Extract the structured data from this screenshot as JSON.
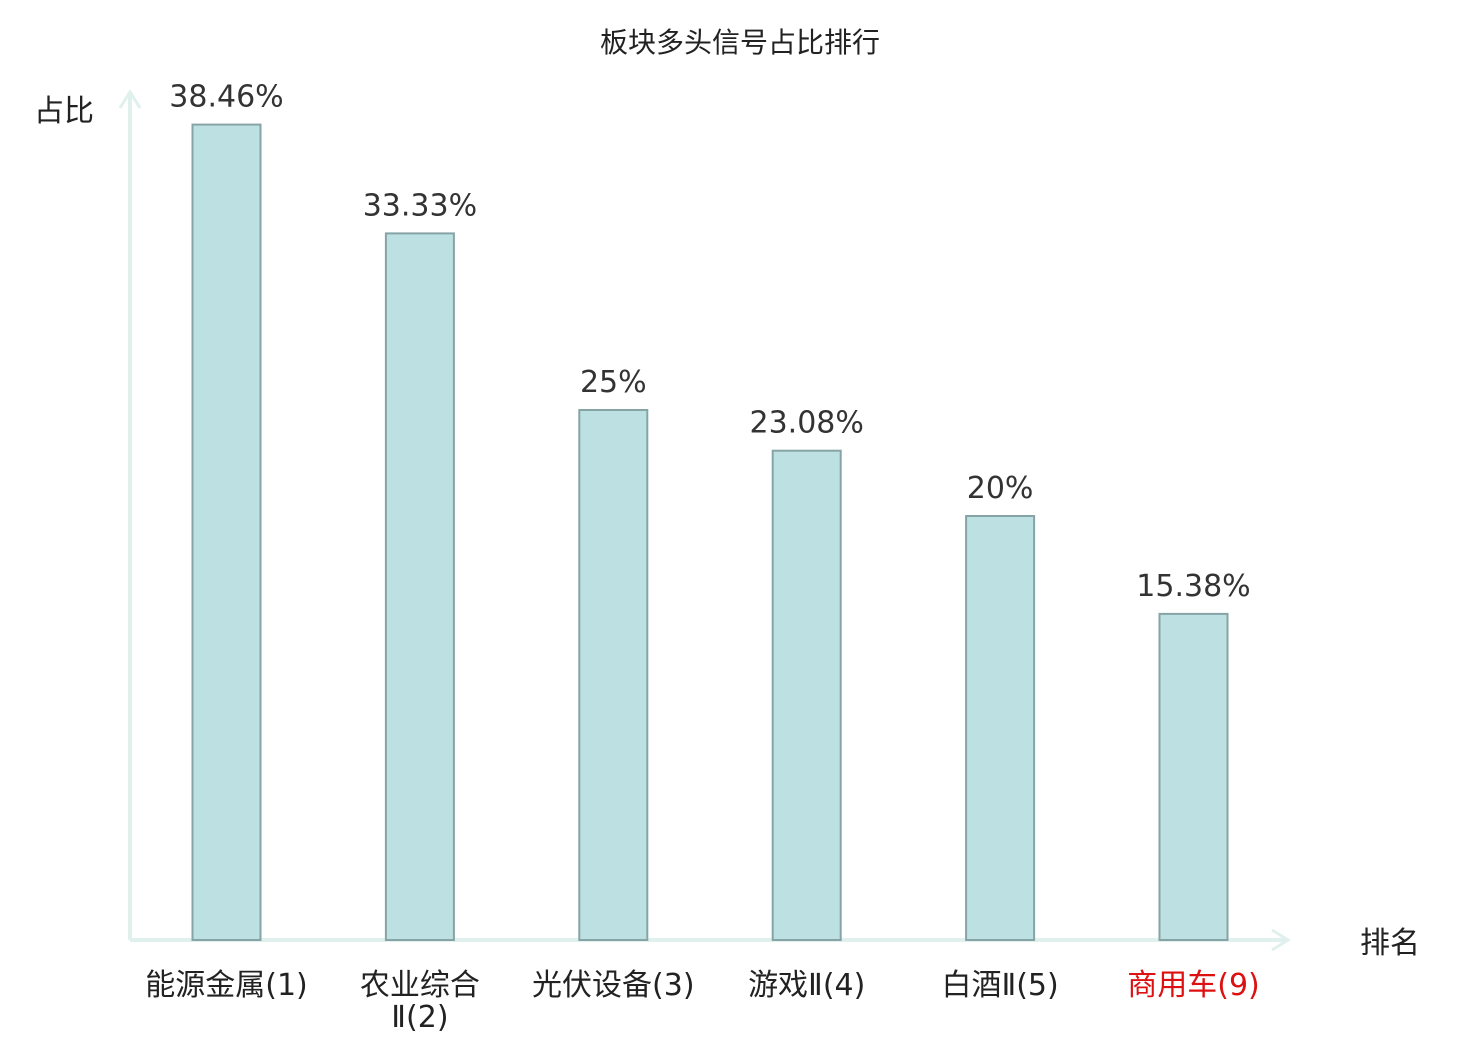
{
  "chart_data": {
    "type": "bar",
    "title": "板块多头信号占比排行",
    "xlabel": "排名",
    "ylabel": "占比",
    "ylim": [
      0,
      40
    ],
    "categories": [
      "能源金属(1)",
      "农业综合Ⅱ(2)",
      "光伏设备(3)",
      "游戏Ⅱ(4)",
      "白酒Ⅱ(5)",
      "商用车(9)"
    ],
    "category_lines": [
      [
        "能源金属(1)"
      ],
      [
        "农业综合",
        "Ⅱ(2)"
      ],
      [
        "光伏设备(3)"
      ],
      [
        "游戏Ⅱ(4)"
      ],
      [
        "白酒Ⅱ(5)"
      ],
      [
        "商用车(9)"
      ]
    ],
    "values": [
      38.46,
      33.33,
      25,
      23.08,
      20,
      15.38
    ],
    "value_labels": [
      "38.46%",
      "33.33%",
      "25%",
      "23.08%",
      "20%",
      "15.38%"
    ],
    "highlight_index": 5,
    "grid": false,
    "legend": "none"
  },
  "colors": {
    "bar_fill": "#bde0e2",
    "bar_stroke": "#86a4a6",
    "axis": "#dff0ed",
    "highlight_label": "#dd1111",
    "text": "#222222"
  }
}
